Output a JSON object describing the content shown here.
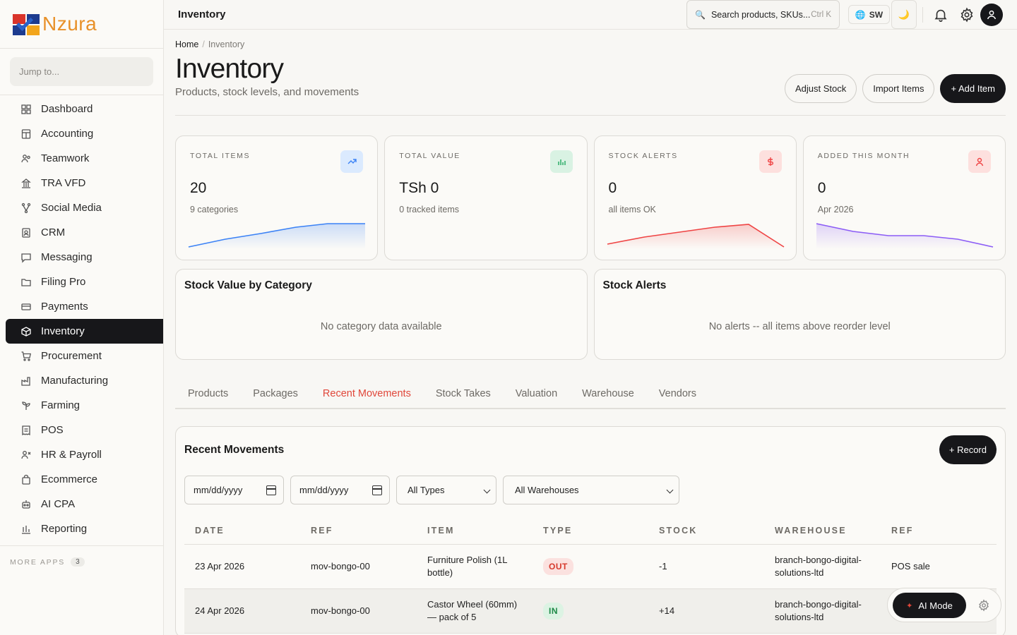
{
  "brand": {
    "name": "Nzura"
  },
  "sidebar": {
    "jump_placeholder": "Jump to...",
    "items": [
      {
        "label": "Dashboard",
        "icon": "grid-icon"
      },
      {
        "label": "Accounting",
        "icon": "calculator-icon"
      },
      {
        "label": "Teamwork",
        "icon": "users-icon"
      },
      {
        "label": "TRA VFD",
        "icon": "building-icon"
      },
      {
        "label": "Social Media",
        "icon": "share-icon"
      },
      {
        "label": "CRM",
        "icon": "contact-icon"
      },
      {
        "label": "Messaging",
        "icon": "message-icon"
      },
      {
        "label": "Filing Pro",
        "icon": "folder-icon"
      },
      {
        "label": "Payments",
        "icon": "card-icon"
      },
      {
        "label": "Inventory",
        "icon": "box-icon",
        "active": true
      },
      {
        "label": "Procurement",
        "icon": "cart-icon"
      },
      {
        "label": "Manufacturing",
        "icon": "factory-icon"
      },
      {
        "label": "Farming",
        "icon": "sprout-icon"
      },
      {
        "label": "POS",
        "icon": "receipt-icon"
      },
      {
        "label": "HR & Payroll",
        "icon": "user-x-icon"
      },
      {
        "label": "Ecommerce",
        "icon": "bag-icon"
      },
      {
        "label": "AI CPA",
        "icon": "robot-icon"
      },
      {
        "label": "Reporting",
        "icon": "bar-chart-icon"
      }
    ],
    "more_apps_label": "MORE APPS",
    "more_apps_count": "3"
  },
  "topbar": {
    "title": "Inventory",
    "search_text": "Search products, SKUs...",
    "search_shortcut": "Ctrl K",
    "language": "SW"
  },
  "breadcrumb": {
    "home": "Home",
    "current": "Inventory"
  },
  "page": {
    "title": "Inventory",
    "subtitle": "Products, stock levels, and movements",
    "actions": {
      "adjust": "Adjust Stock",
      "import": "Import Items",
      "add": "+ Add Item"
    }
  },
  "stats": [
    {
      "label": "TOTAL ITEMS",
      "value": "20",
      "sub": "9 categories",
      "color": "#3b82f6",
      "bg": "#dbeafe"
    },
    {
      "label": "TOTAL VALUE",
      "value": "TSh 0",
      "sub": "0 tracked items",
      "color": "#22a860",
      "bg": "#d9f2e3"
    },
    {
      "label": "STOCK ALERTS",
      "value": "0",
      "sub": "all items OK",
      "color": "#ef4444",
      "bg": "#fde0de"
    },
    {
      "label": "ADDED THIS MONTH",
      "value": "0",
      "sub": "Apr 2026",
      "color": "#8b5cf6",
      "bg": "#fde0de"
    }
  ],
  "panels": {
    "category": {
      "title": "Stock Value by Category",
      "empty": "No category data available"
    },
    "alerts": {
      "title": "Stock Alerts",
      "empty": "No alerts -- all items above reorder level"
    }
  },
  "tabs": [
    "Products",
    "Packages",
    "Recent Movements",
    "Stock Takes",
    "Valuation",
    "Warehouse",
    "Vendors"
  ],
  "active_tab": "Recent Movements",
  "movements": {
    "title": "Recent Movements",
    "record_label": "+ Record",
    "date_from": "mm/dd/yyyy",
    "date_to": "mm/dd/yyyy",
    "type_filter": "All Types",
    "warehouse_filter": "All Warehouses",
    "columns": [
      "DATE",
      "REF",
      "ITEM",
      "TYPE",
      "STOCK",
      "WAREHOUSE",
      "REF"
    ],
    "rows": [
      {
        "date": "23 Apr 2026",
        "ref": "mov-bongo-00",
        "item": "Furniture Polish (1L bottle)",
        "type": "OUT",
        "stock": "-1",
        "warehouse": "branch-bongo-digital-solutions-ltd",
        "ref2": "POS sale"
      },
      {
        "date": "24 Apr 2026",
        "ref": "mov-bongo-00",
        "item": "Castor Wheel (60mm) — pack of 5",
        "type": "IN",
        "stock": "+14",
        "warehouse": "branch-bongo-digital-solutions-ltd",
        "ref2": "-"
      }
    ]
  },
  "ai": {
    "label": "AI Mode"
  }
}
